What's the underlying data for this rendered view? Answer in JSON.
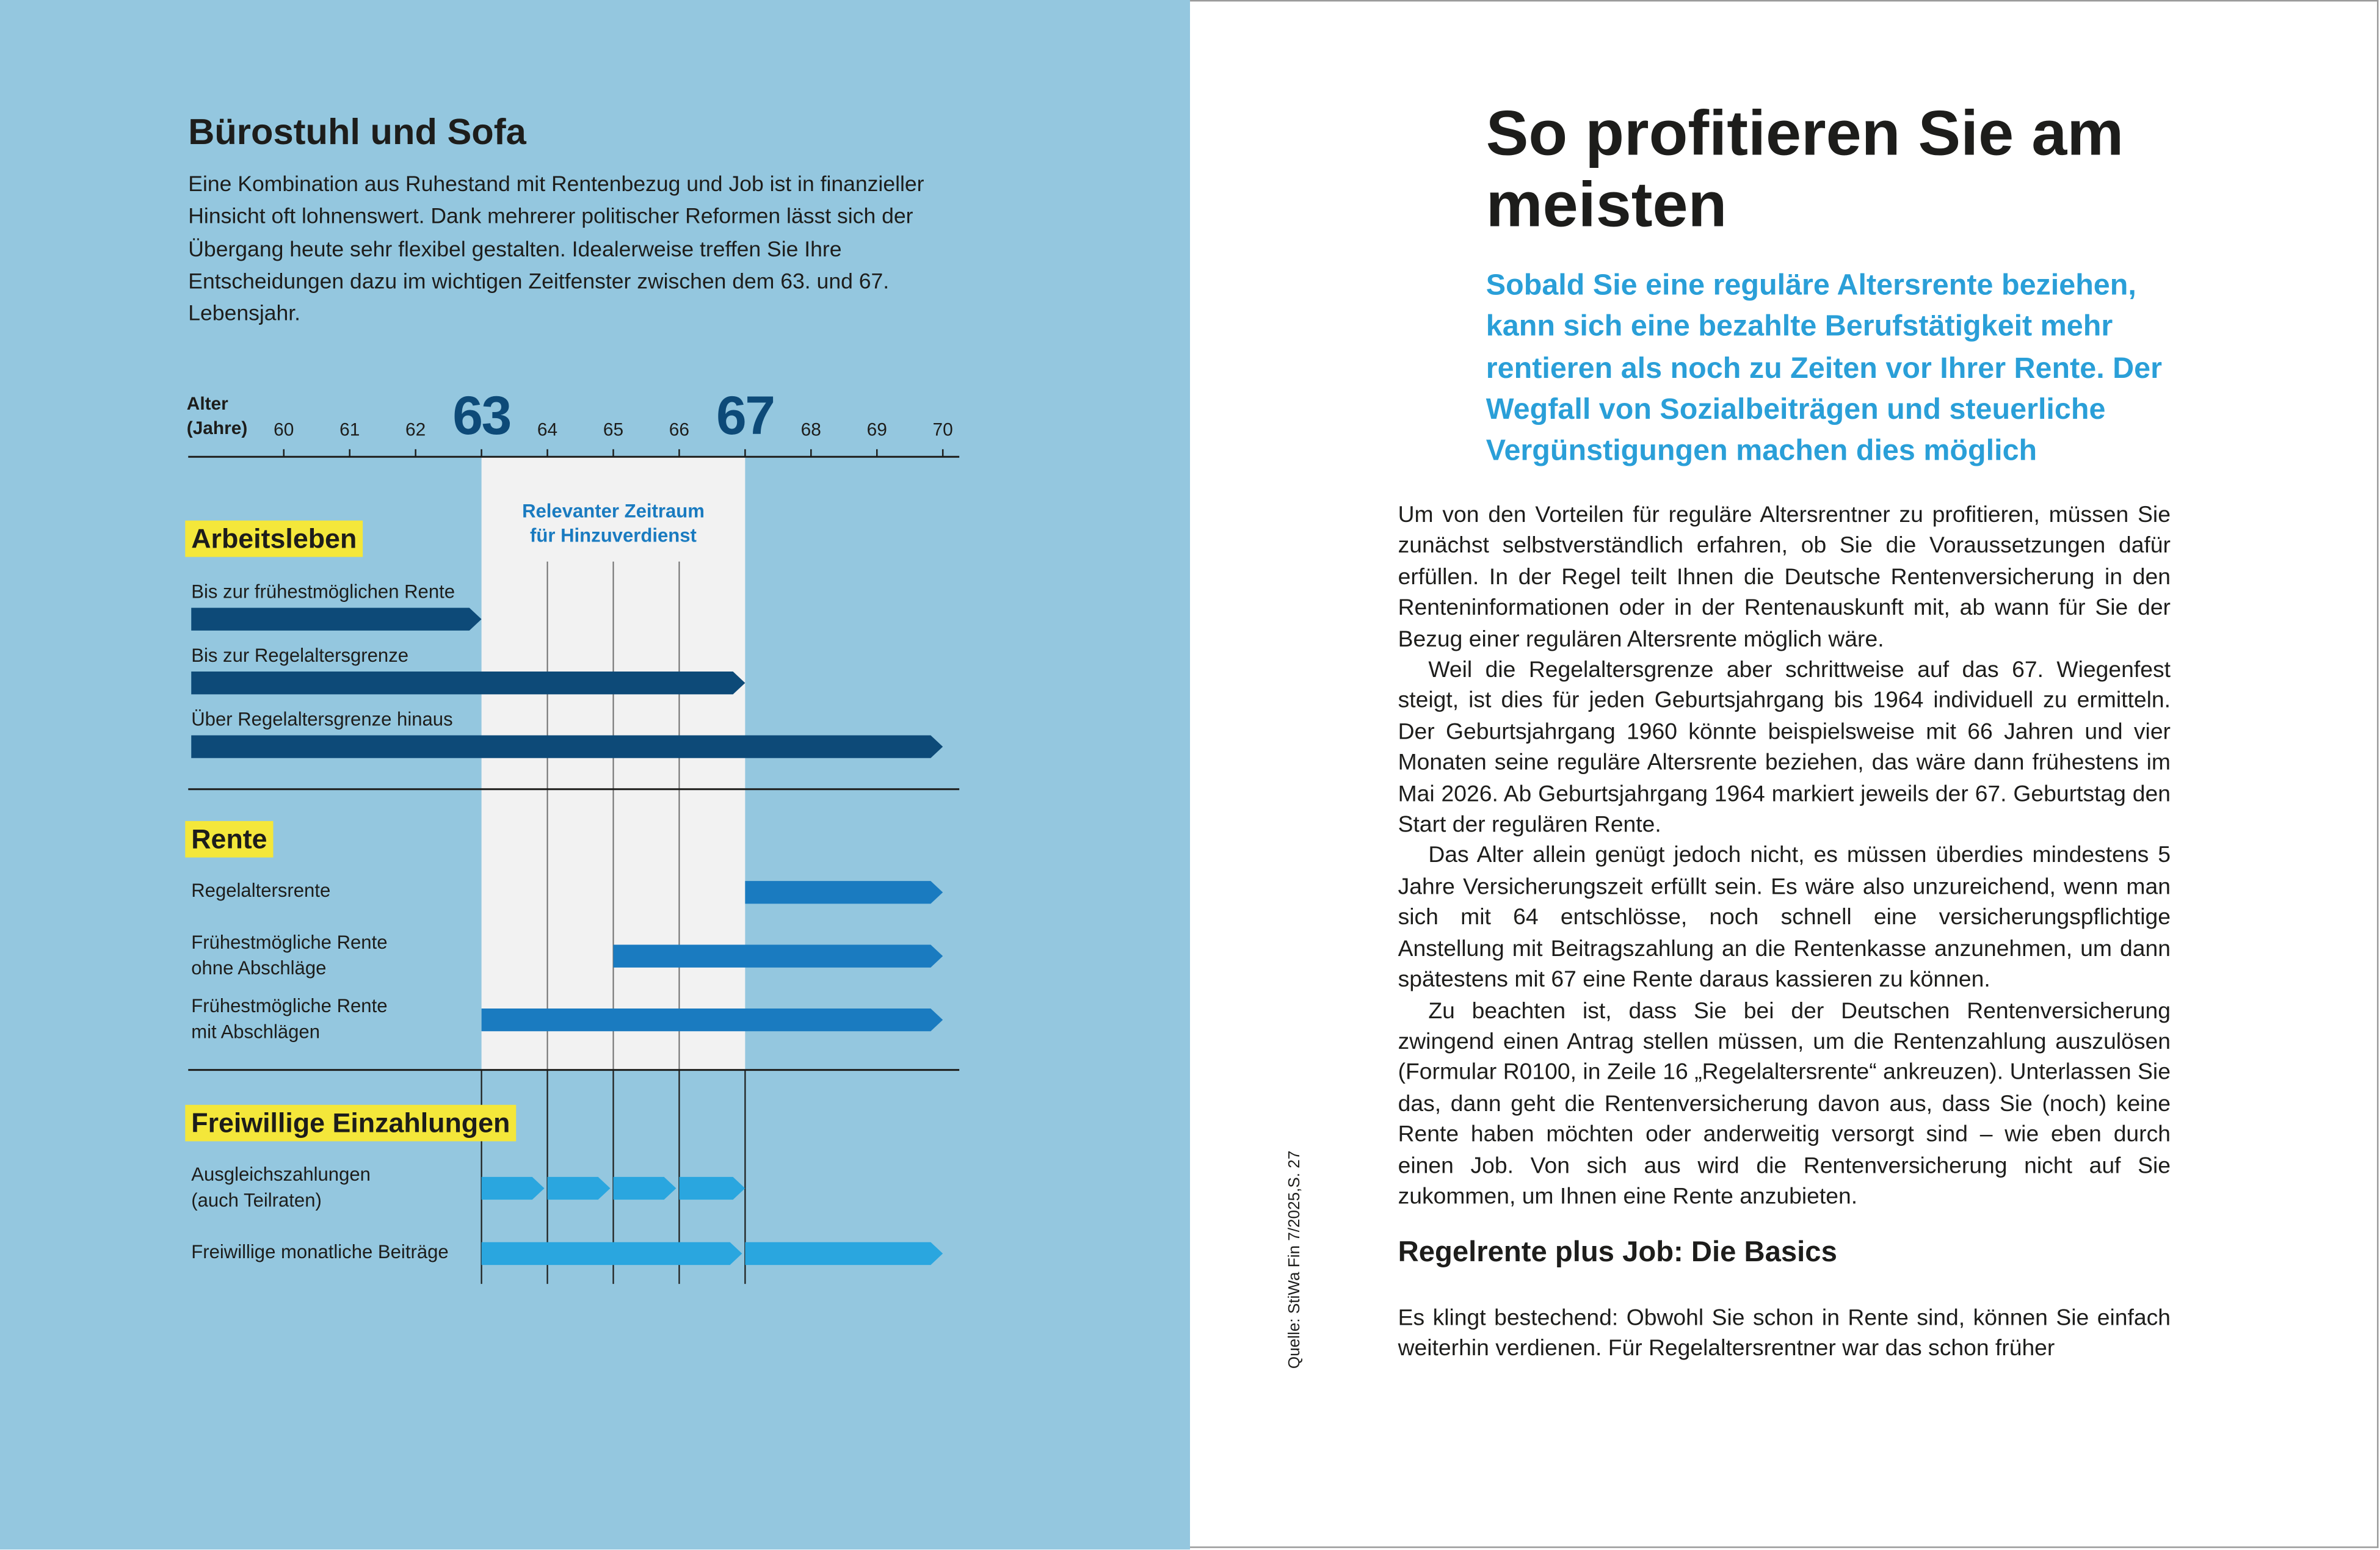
{
  "left": {
    "title": "Bürostuhl und Sofa",
    "intro": "Eine Kombination aus Ruhestand mit Rentenbezug und Job ist in finanzieller Hinsicht oft lohnenswert. Dank mehrerer politischer Reformen lässt sich der Übergang heute sehr flexibel gestalten. Idealerweise treffen Sie Ihre Entscheidungen dazu im wichtigen Zeitfenster zwischen dem 63. und 67. Lebensjahr.",
    "chart": {
      "type": "timeline",
      "axis_label": "Alter\n(Jahre)",
      "xlim": [
        58.55,
        70.25
      ],
      "xticks": [
        60,
        61,
        62,
        63,
        64,
        65,
        66,
        67,
        68,
        69,
        70
      ],
      "window": {
        "label": "Relevanter Zeitraum\nfür Hinzuverdienst",
        "start": 63,
        "end": 67,
        "color": "#f2f2f2"
      },
      "groups": [
        {
          "label": "Arbeitsleben",
          "color": "#0d4a78",
          "rows": [
            {
              "label": "Bis zur frühestmöglichen Rente",
              "segments": [
                {
                  "end": 63
                }
              ]
            },
            {
              "label": "Bis zur Regelaltersgrenze",
              "segments": [
                {
                  "end": 67
                }
              ]
            },
            {
              "label": "Über Regelaltersgrenze hinaus",
              "segments": [
                {
                  "end": 70
                }
              ]
            }
          ]
        },
        {
          "label": "Rente",
          "color": "#1a7bc0",
          "rows": [
            {
              "label": "Regelaltersrente",
              "segments": [
                {
                  "start": 67,
                  "end": 70
                }
              ]
            },
            {
              "label": "Frühestmögliche Rente\nohne Abschläge",
              "segments": [
                {
                  "start": 65,
                  "end": 70
                }
              ]
            },
            {
              "label": "Frühestmögliche Rente\nmit Abschlägen",
              "segments": [
                {
                  "start": 63,
                  "end": 70
                }
              ]
            }
          ]
        },
        {
          "label": "Freiwillige Einzahlungen",
          "color": "#2aa6df",
          "rows": [
            {
              "label": "Ausgleichszahlungen\n(auch Teilraten)",
              "segments": [
                {
                  "start": 63,
                  "end": 64
                },
                {
                  "start": 64,
                  "end": 65
                },
                {
                  "start": 65,
                  "end": 66
                },
                {
                  "start": 66,
                  "end": 67
                }
              ]
            },
            {
              "label": "Freiwillige monatliche Beiträge",
              "segments": [
                {
                  "start": 63,
                  "end": 67
                },
                {
                  "start": 67,
                  "end": 70
                }
              ]
            }
          ]
        }
      ]
    }
  },
  "source": "Quelle: StiWa Fin 7/2025,S. 27",
  "right": {
    "title": "So profitieren Sie am meisten",
    "lead": "Sobald Sie eine reguläre Altersrente beziehen, kann sich eine bezahlte Berufstätigkeit mehr rentieren als noch zu Zeiten vor Ihrer Rente. Der Wegfall von Sozialbeiträgen und steuerliche Vergünstigungen machen dies möglich",
    "paragraphs": [
      "Um von den Vorteilen für reguläre Altersrentner zu profitieren, müssen Sie zunächst selbstverständlich erfahren, ob Sie die Voraussetzungen dafür erfüllen. In der Regel teilt Ihnen die Deutsche Rentenversicherung in den Renteninformationen oder in der Rentenauskunft mit, ab wann für Sie der Bezug einer regulären Altersrente möglich wäre.",
      "Weil die Regelaltersgrenze aber schrittweise auf das 67. Wiegenfest steigt, ist dies für jeden Geburtsjahrgang bis 1964 individuell zu ermitteln. Der Geburtsjahrgang 1960 könnte beispielsweise mit 66 Jahren und vier Monaten seine reguläre Altersrente beziehen, das wäre dann frühestens im Mai 2026. Ab Geburtsjahrgang 1964 markiert jeweils der 67. Geburtstag den Start der regulären Rente.",
      "Das Alter allein genügt jedoch nicht, es müssen überdies mindestens 5 Jahre Versicherungszeit erfüllt sein. Es wäre also unzureichend, wenn man sich mit 64 entschlösse, noch schnell eine versicherungspflichtige Anstellung mit Beitragszahlung an die Rentenkasse anzunehmen, um dann spätestens mit 67 eine Rente daraus kassieren zu können.",
      "Zu beachten ist, dass Sie bei der Deutschen Rentenversicherung zwingend einen Antrag stellen müssen, um die Rentenzahlung auszulösen (Formular R0100, in Zeile 16 „Regelaltersrente“ ankreuzen). Unterlassen Sie das, dann geht die Rentenversicherung davon aus, dass Sie (noch) keine Rente haben möchten oder anderweitig versorgt sind – wie eben durch einen Job. Von sich aus wird die Rentenversicherung nicht auf Sie zukommen, um Ihnen eine Rente anzubieten."
    ],
    "subheading": "Regelrente plus Job: Die Basics",
    "closing": "Es klingt bestechend: Obwohl Sie schon in Rente sind, können Sie einfach weiterhin verdienen. Für Regelaltersrentner war das schon früher"
  }
}
